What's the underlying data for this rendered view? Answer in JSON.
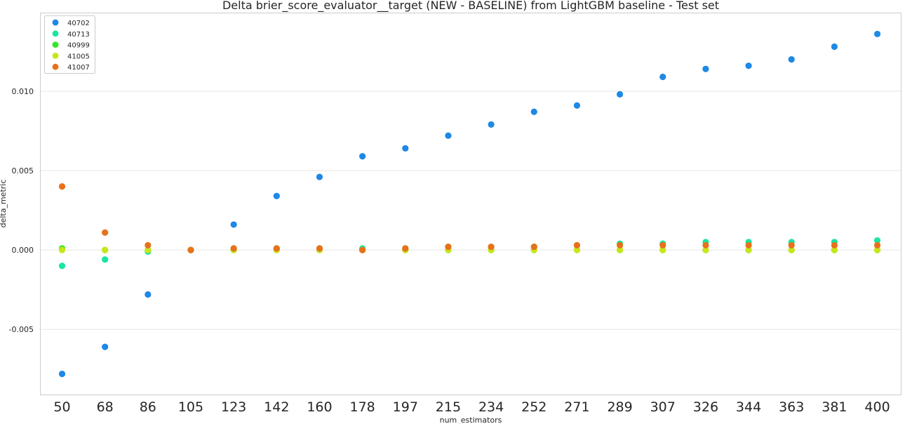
{
  "chart_data": {
    "type": "scatter",
    "title": "Delta brier_score_evaluator__target (NEW - BASELINE) from LightGBM baseline - Test set",
    "xlabel": "num_estimators",
    "ylabel": "delta_metric",
    "categories": [
      "50",
      "68",
      "86",
      "105",
      "123",
      "142",
      "160",
      "178",
      "197",
      "215",
      "234",
      "252",
      "271",
      "289",
      "307",
      "326",
      "344",
      "363",
      "381",
      "400"
    ],
    "yticks": [
      -0.005,
      0.0,
      0.005,
      0.01
    ],
    "ytick_labels": [
      "-0.005",
      "0.000",
      "0.005",
      "0.010"
    ],
    "ylim": [
      -0.0091,
      0.0149
    ],
    "grid": "horizontal",
    "legend_position": "top-left",
    "series": [
      {
        "name": "40702",
        "color": "#1e88e5",
        "values": [
          -0.0078,
          -0.0061,
          -0.0028,
          0.0,
          0.0016,
          0.0034,
          0.0046,
          0.0059,
          0.0064,
          0.0072,
          0.0079,
          0.0087,
          0.0091,
          0.0098,
          0.0109,
          0.0114,
          0.0116,
          0.012,
          0.0128,
          0.0136
        ]
      },
      {
        "name": "40713",
        "color": "#19e6a0",
        "values": [
          -0.001,
          -0.0006,
          -0.0001,
          0.0,
          0.0001,
          0.0001,
          0.0001,
          0.0001,
          0.0001,
          0.0002,
          0.0002,
          0.0002,
          0.0003,
          0.0004,
          0.0004,
          0.0005,
          0.0005,
          0.0005,
          0.0005,
          0.0006
        ]
      },
      {
        "name": "40999",
        "color": "#33e625",
        "values": [
          0.0001,
          0.0,
          0.0,
          0.0,
          0.0,
          0.0,
          0.0,
          0.0,
          0.0,
          0.0,
          0.0,
          0.0,
          0.0,
          0.0,
          0.0,
          0.0,
          0.0,
          0.0,
          0.0,
          0.0
        ]
      },
      {
        "name": "41005",
        "color": "#c8e61a",
        "values": [
          0.0,
          0.0,
          0.0,
          0.0,
          0.0,
          0.0,
          0.0,
          0.0,
          0.0,
          0.0,
          0.0,
          0.0,
          0.0,
          0.0,
          0.0,
          0.0,
          0.0,
          0.0,
          0.0,
          0.0
        ]
      },
      {
        "name": "41007",
        "color": "#e8711a",
        "values": [
          0.004,
          0.0011,
          0.0003,
          0.0,
          0.0001,
          0.0001,
          0.0001,
          0.0,
          0.0001,
          0.0002,
          0.0002,
          0.0002,
          0.0003,
          0.0003,
          0.0003,
          0.0003,
          0.0003,
          0.0003,
          0.0003,
          0.0003
        ]
      }
    ]
  }
}
